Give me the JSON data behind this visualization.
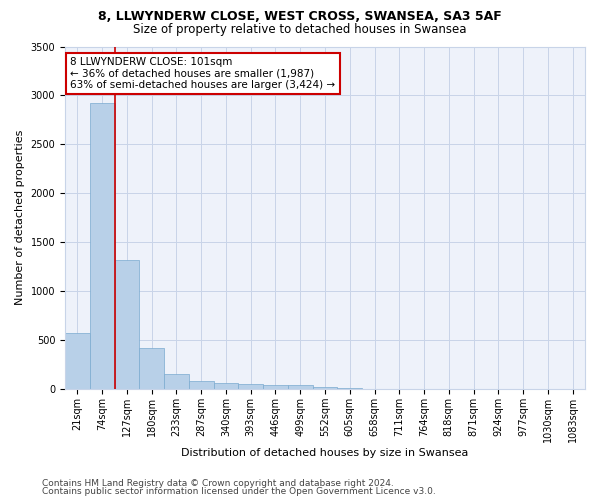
{
  "title": "8, LLWYNDERW CLOSE, WEST CROSS, SWANSEA, SA3 5AF",
  "subtitle": "Size of property relative to detached houses in Swansea",
  "xlabel": "Distribution of detached houses by size in Swansea",
  "ylabel": "Number of detached properties",
  "footer_line1": "Contains HM Land Registry data © Crown copyright and database right 2024.",
  "footer_line2": "Contains public sector information licensed under the Open Government Licence v3.0.",
  "bin_labels": [
    "21sqm",
    "74sqm",
    "127sqm",
    "180sqm",
    "233sqm",
    "287sqm",
    "340sqm",
    "393sqm",
    "446sqm",
    "499sqm",
    "552sqm",
    "605sqm",
    "658sqm",
    "711sqm",
    "764sqm",
    "818sqm",
    "871sqm",
    "924sqm",
    "977sqm",
    "1030sqm",
    "1083sqm"
  ],
  "bar_values": [
    570,
    2920,
    1320,
    415,
    155,
    85,
    60,
    55,
    45,
    40,
    20,
    8,
    4,
    2,
    1,
    1,
    0,
    0,
    0,
    0,
    0
  ],
  "bar_color": "#b8d0e8",
  "bar_edge_color": "#7aaad0",
  "annotation_text": "8 LLWYNDERW CLOSE: 101sqm\n← 36% of detached houses are smaller (1,987)\n63% of semi-detached houses are larger (3,424) →",
  "annotation_box_color": "#ffffff",
  "annotation_box_edge_color": "#cc0000",
  "property_line_x": 1.5,
  "property_line_color": "#cc0000",
  "ylim": [
    0,
    3500
  ],
  "yticks": [
    0,
    500,
    1000,
    1500,
    2000,
    2500,
    3000,
    3500
  ],
  "bg_color": "#eef2fa",
  "grid_color": "#c8d4e8",
  "title_fontsize": 9,
  "subtitle_fontsize": 8.5,
  "axis_label_fontsize": 8,
  "tick_fontsize": 7,
  "footer_fontsize": 6.5
}
